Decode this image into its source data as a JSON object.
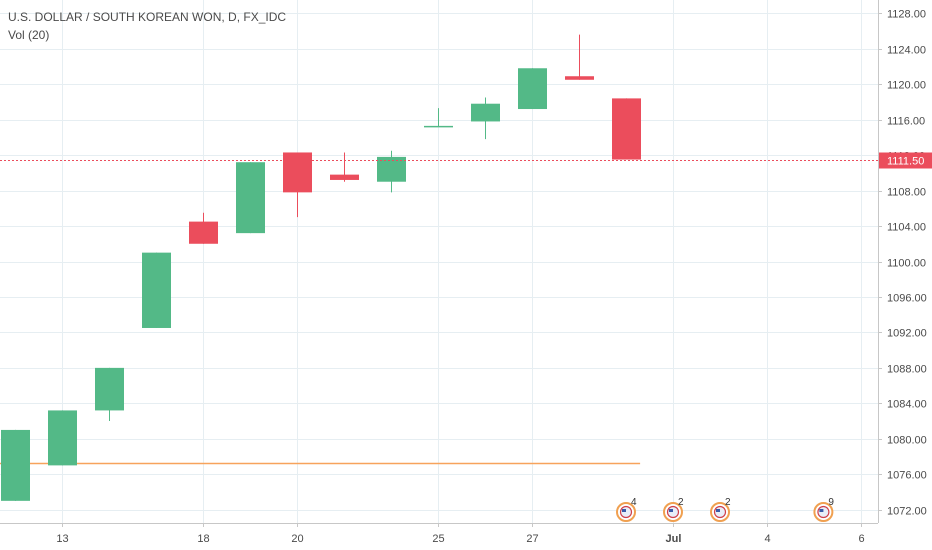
{
  "legend": {
    "symbol_line": "U.S. DOLLAR / SOUTH KOREAN WON, D, FX_IDC",
    "indicator_line": "Vol (20)"
  },
  "colors": {
    "up": "#53b987",
    "down": "#eb4d5c",
    "grid": "#e6eef2",
    "axis": "#c7c7c7",
    "last_price_line": "#eb4d5c",
    "volume_ma": "#f7a35c"
  },
  "chart_data": {
    "type": "candlestick",
    "title": "U.S. DOLLAR / SOUTH KOREAN WON, D, FX_IDC",
    "ylim": [
      1070.5,
      1129.5
    ],
    "y_ticks": [
      1072,
      1076,
      1080,
      1084,
      1088,
      1092,
      1096,
      1100,
      1104,
      1108,
      1112,
      1116,
      1120,
      1124,
      1128
    ],
    "y_tick_labels": [
      "1072.00",
      "1076.00",
      "1080.00",
      "1084.00",
      "1088.00",
      "1092.00",
      "1096.00",
      "1100.00",
      "1104.00",
      "1108.00",
      "1112.00",
      "1116.00",
      "1120.00",
      "1124.00",
      "1128.00"
    ],
    "x_ticks": [
      {
        "slot": 1.0,
        "label": "13"
      },
      {
        "slot": 4.0,
        "label": "18"
      },
      {
        "slot": 6.0,
        "label": "20"
      },
      {
        "slot": 9.0,
        "label": "25"
      },
      {
        "slot": 11.0,
        "label": "27"
      },
      {
        "slot": 14.0,
        "label": "Jul"
      },
      {
        "slot": 16.0,
        "label": "4"
      },
      {
        "slot": 18.0,
        "label": "6"
      }
    ],
    "candles": [
      {
        "slot": 0,
        "open": 1073.0,
        "high": 1081.0,
        "low": 1073.0,
        "close": 1081.0
      },
      {
        "slot": 1,
        "open": 1077.0,
        "high": 1083.2,
        "low": 1077.0,
        "close": 1083.2
      },
      {
        "slot": 2,
        "open": 1083.2,
        "high": 1088.0,
        "low": 1082.0,
        "close": 1088.0
      },
      {
        "slot": 3,
        "open": 1092.5,
        "high": 1101.0,
        "low": 1092.5,
        "close": 1101.0
      },
      {
        "slot": 4,
        "open": 1104.5,
        "high": 1105.5,
        "low": 1102.0,
        "close": 1102.0
      },
      {
        "slot": 5,
        "open": 1103.2,
        "high": 1111.2,
        "low": 1103.2,
        "close": 1111.2
      },
      {
        "slot": 6,
        "open": 1112.3,
        "high": 1112.3,
        "low": 1105.0,
        "close": 1107.8
      },
      {
        "slot": 7,
        "open": 1109.8,
        "high": 1112.3,
        "low": 1109.0,
        "close": 1109.2
      },
      {
        "slot": 8,
        "open": 1109.0,
        "high": 1112.5,
        "low": 1107.8,
        "close": 1111.8
      },
      {
        "slot": 9,
        "open": 1115.2,
        "high": 1117.3,
        "low": 1115.2,
        "close": 1115.3
      },
      {
        "slot": 10,
        "open": 1115.8,
        "high": 1118.5,
        "low": 1113.8,
        "close": 1117.8
      },
      {
        "slot": 11,
        "open": 1117.2,
        "high": 1121.8,
        "low": 1117.2,
        "close": 1121.8
      },
      {
        "slot": 12,
        "open": 1120.9,
        "high": 1125.6,
        "low": 1120.5,
        "close": 1120.5
      },
      {
        "slot": 13,
        "open": 1118.4,
        "high": 1118.4,
        "low": 1111.5,
        "close": 1111.5
      }
    ],
    "last_price": 1111.5,
    "last_price_label": "1111.50",
    "volume_ma_line": {
      "price_level": 1077.3,
      "from_slot": -0.5,
      "to_slot": 13.3
    },
    "events": [
      {
        "slot": 13.0,
        "count": "4"
      },
      {
        "slot": 14.0,
        "count": "2"
      },
      {
        "slot": 15.0,
        "count": "2"
      },
      {
        "slot": 17.2,
        "count": "9"
      }
    ],
    "grid": true
  }
}
